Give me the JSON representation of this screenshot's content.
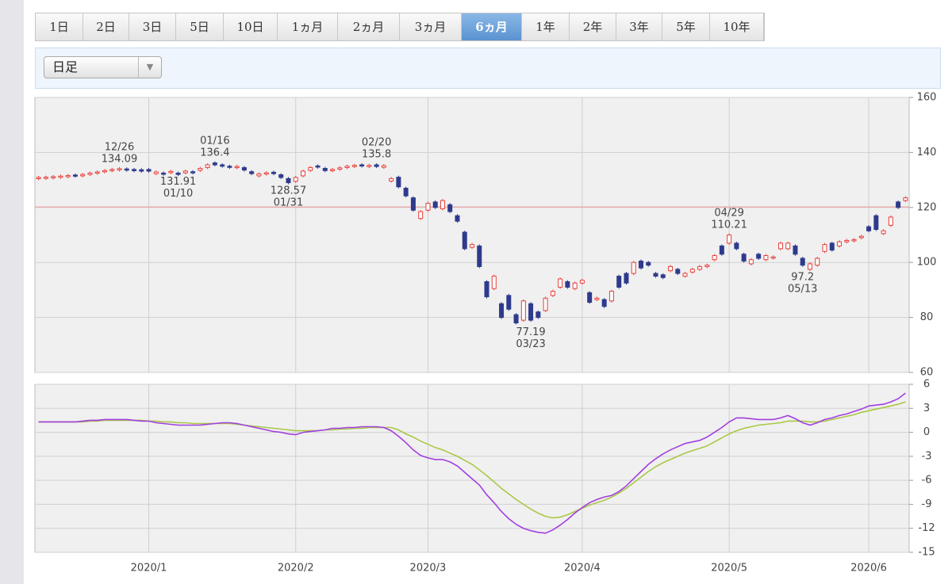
{
  "tabs": [
    "1日",
    "2日",
    "3日",
    "5日",
    "10日",
    "1ヵ月",
    "2ヵ月",
    "3ヵ月",
    "6ヵ月",
    "1年",
    "2年",
    "3年",
    "5年",
    "10年"
  ],
  "selected_tab": 8,
  "interval_select": "日足",
  "chart_data": [
    {
      "type": "candlestick",
      "open": [
        130.5,
        130.8,
        130.9,
        131,
        131.3,
        131.8,
        131.5,
        132,
        132.6,
        133,
        133.5,
        133.7,
        134,
        133.8,
        133.7,
        133.8,
        132.3,
        132.5,
        132.8,
        132.5,
        132.6,
        133,
        133.5,
        134.5,
        136.2,
        135.5,
        135,
        134.6,
        134.5,
        133,
        131.5,
        132.4,
        132.8,
        131.9,
        130.5,
        129.5,
        131.5,
        133.5,
        135.1,
        134.2,
        133.4,
        133.9,
        134.5,
        134.9,
        135.5,
        134.9,
        135.5,
        134.6,
        129.6,
        131,
        127,
        123.5,
        116,
        119,
        122,
        119.5,
        121,
        117,
        111,
        105.5,
        106,
        93,
        90.5,
        85,
        88,
        81,
        79,
        85,
        82,
        82.5,
        88,
        91,
        93,
        90.5,
        92.5,
        89,
        86.5,
        86.5,
        86,
        95,
        96,
        96,
        100.5,
        100,
        96,
        95.5,
        97,
        97.5,
        95,
        96.5,
        97.5,
        98.5,
        101,
        106,
        107,
        107,
        103,
        99.5,
        103,
        101,
        101.8,
        105,
        105,
        106,
        101.5,
        97.5,
        99,
        104,
        107,
        106,
        107.5,
        108,
        109,
        113,
        117,
        110.5,
        113.5,
        122,
        122.5
      ],
      "close": [
        130.9,
        131,
        131.2,
        131.4,
        131.6,
        131.4,
        132,
        132.5,
        132.9,
        133.4,
        133.8,
        134.1,
        133.6,
        133.6,
        133.2,
        133.2,
        132.9,
        132.4,
        133.1,
        132,
        133.2,
        132.9,
        134.2,
        135.5,
        135.5,
        135,
        134.8,
        134.9,
        133.6,
        132.3,
        132.2,
        132.6,
        132.3,
        130.9,
        129,
        130.9,
        133.2,
        134.5,
        134.8,
        133.4,
        133.8,
        134.4,
        135,
        135.3,
        135.1,
        135.3,
        134.9,
        135.2,
        130.5,
        127.5,
        124.2,
        119,
        118.5,
        121.5,
        120,
        122.5,
        118.5,
        115,
        105,
        106.5,
        98.5,
        87.5,
        95,
        80,
        83,
        78,
        86,
        79,
        80,
        87,
        89.5,
        94,
        91,
        92.5,
        93.5,
        85.5,
        87,
        84,
        89.5,
        91,
        92.5,
        100,
        98,
        99,
        95,
        94.5,
        98.5,
        96,
        96,
        97.5,
        98.5,
        99,
        102.5,
        103,
        110,
        105,
        100.5,
        101,
        101.5,
        102.5,
        102,
        107,
        107,
        103,
        99,
        99.5,
        101.5,
        106.5,
        104.5,
        107.5,
        108,
        108.3,
        109.5,
        111.5,
        112,
        111.5,
        116.5,
        120,
        123.5
      ],
      "up_color": "#e8413c",
      "down_color": "#2e3a8c",
      "ylim": [
        60,
        160
      ],
      "yticks": [
        60,
        80,
        100,
        120,
        140,
        160
      ],
      "grid": true,
      "reference_line": {
        "value": 120.2,
        "color": "#f29a9a"
      },
      "annotations": [
        {
          "date": "12/26",
          "value": 134.09,
          "position": "above"
        },
        {
          "date": "01/10",
          "value": 131.91,
          "position": "below"
        },
        {
          "date": "01/16",
          "value": 136.4,
          "position": "above"
        },
        {
          "date": "01/31",
          "value": 128.57,
          "position": "below"
        },
        {
          "date": "02/20",
          "value": 135.8,
          "position": "above"
        },
        {
          "date": "03/23",
          "value": 77.19,
          "position": "below"
        },
        {
          "date": "04/29",
          "value": 110.21,
          "position": "above"
        },
        {
          "date": "05/13",
          "value": 97.2,
          "position": "below"
        }
      ]
    },
    {
      "type": "line",
      "categories": [
        null,
        null,
        null,
        null,
        null,
        null,
        null,
        null,
        null,
        null,
        null,
        null,
        null,
        null,
        null,
        "2020/1",
        null,
        null,
        null,
        null,
        null,
        null,
        null,
        null,
        null,
        null,
        null,
        null,
        null,
        null,
        null,
        null,
        null,
        null,
        null,
        "2020/2",
        null,
        null,
        null,
        null,
        null,
        null,
        null,
        null,
        null,
        null,
        null,
        null,
        null,
        null,
        null,
        null,
        null,
        "2020/3",
        null,
        null,
        null,
        null,
        null,
        null,
        null,
        null,
        null,
        null,
        null,
        null,
        null,
        null,
        null,
        null,
        null,
        null,
        null,
        null,
        "2020/4",
        null,
        null,
        null,
        null,
        null,
        null,
        null,
        null,
        null,
        null,
        null,
        null,
        null,
        null,
        null,
        null,
        null,
        null,
        null,
        "2020/5",
        null,
        null,
        null,
        null,
        null,
        null,
        null,
        null,
        null,
        null,
        null,
        null,
        null,
        null,
        null,
        null,
        null,
        null,
        "2020/6",
        null,
        null,
        null,
        null,
        null
      ],
      "series": [
        {
          "color": "#a23fe0",
          "values": [
            1.3,
            1.3,
            1.3,
            1.3,
            1.3,
            1.3,
            1.4,
            1.5,
            1.5,
            1.6,
            1.6,
            1.6,
            1.6,
            1.5,
            1.4,
            1.4,
            1.2,
            1.1,
            1,
            0.9,
            0.9,
            0.9,
            0.9,
            1,
            1.1,
            1.2,
            1.2,
            1.1,
            0.9,
            0.7,
            0.5,
            0.3,
            0.1,
            0,
            -0.2,
            -0.3,
            0,
            0.1,
            0.2,
            0.3,
            0.5,
            0.5,
            0.6,
            0.6,
            0.7,
            0.7,
            0.7,
            0.6,
            0.2,
            -0.5,
            -1.3,
            -2.2,
            -2.9,
            -3.2,
            -3.4,
            -3.4,
            -3.7,
            -4.2,
            -5,
            -5.8,
            -6.6,
            -7.8,
            -8.8,
            -9.9,
            -10.8,
            -11.5,
            -12,
            -12.3,
            -12.5,
            -12.6,
            -12.2,
            -11.6,
            -10.9,
            -10.1,
            -9.4,
            -8.8,
            -8.4,
            -8.1,
            -7.9,
            -7.4,
            -6.7,
            -5.8,
            -4.9,
            -4,
            -3.3,
            -2.7,
            -2.2,
            -1.8,
            -1.4,
            -1.2,
            -1,
            -0.6,
            0,
            0.6,
            1.3,
            1.8,
            1.8,
            1.7,
            1.6,
            1.6,
            1.6,
            1.8,
            2.1,
            1.7,
            1.2,
            0.9,
            1.2,
            1.6,
            1.8,
            2.1,
            2.3,
            2.6,
            2.9,
            3.3,
            3.4,
            3.5,
            3.8,
            4.2,
            4.9
          ]
        },
        {
          "color": "#a9c845",
          "values": [
            1.3,
            1.3,
            1.3,
            1.3,
            1.3,
            1.3,
            1.3,
            1.4,
            1.4,
            1.5,
            1.5,
            1.5,
            1.5,
            1.5,
            1.5,
            1.4,
            1.4,
            1.3,
            1.3,
            1.2,
            1.2,
            1.1,
            1.1,
            1.1,
            1.1,
            1.1,
            1.1,
            1,
            0.9,
            0.8,
            0.7,
            0.6,
            0.5,
            0.4,
            0.3,
            0.2,
            0.2,
            0.2,
            0.2,
            0.3,
            0.3,
            0.4,
            0.4,
            0.5,
            0.5,
            0.6,
            0.6,
            0.6,
            0.6,
            0.3,
            -0.2,
            -0.6,
            -1.1,
            -1.5,
            -1.9,
            -2.2,
            -2.6,
            -3,
            -3.5,
            -4,
            -4.7,
            -5.4,
            -6.2,
            -7,
            -7.7,
            -8.4,
            -9,
            -9.6,
            -10.1,
            -10.5,
            -10.7,
            -10.6,
            -10.3,
            -9.9,
            -9.5,
            -9.1,
            -8.8,
            -8.5,
            -8.1,
            -7.6,
            -7,
            -6.3,
            -5.6,
            -4.9,
            -4.3,
            -3.8,
            -3.4,
            -3,
            -2.6,
            -2.3,
            -2,
            -1.7,
            -1.2,
            -0.7,
            -0.2,
            0.2,
            0.5,
            0.7,
            0.9,
            1,
            1.1,
            1.2,
            1.4,
            1.4,
            1.4,
            1.3,
            1.3,
            1.4,
            1.6,
            1.8,
            2,
            2.2,
            2.5,
            2.7,
            2.9,
            3.1,
            3.3,
            3.5,
            3.8
          ]
        }
      ],
      "ylim": [
        -15,
        6
      ],
      "yticks": [
        6,
        3,
        0,
        -3,
        -6,
        -9,
        -12,
        -15
      ],
      "grid": true
    }
  ]
}
